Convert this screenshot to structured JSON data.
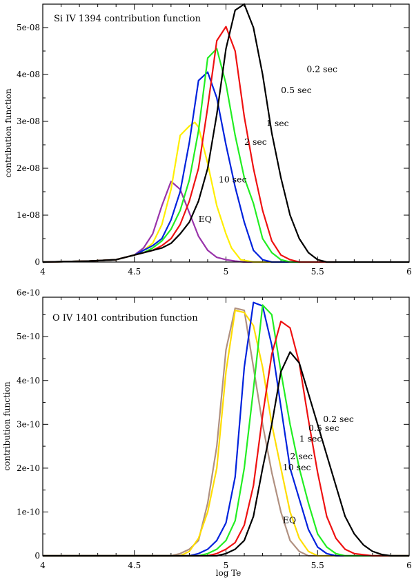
{
  "chart_data": [
    {
      "type": "line",
      "title": "Si IV 1394 contribution function",
      "xlabel": "",
      "ylabel": "contribution function",
      "xlim": [
        4,
        6
      ],
      "ylim": [
        0,
        5.5e-08
      ],
      "xticks": [
        4,
        4.5,
        5,
        5.5,
        6
      ],
      "xtick_labels": [
        "4",
        "4.5",
        "5",
        "5.5",
        "6"
      ],
      "yticks": [
        0,
        1e-08,
        2e-08,
        3e-08,
        4e-08,
        5e-08
      ],
      "ytick_labels": [
        "0",
        "1e-08",
        "2e-08",
        "3e-08",
        "4e-08",
        "5e-08"
      ],
      "series": [
        {
          "name": "EQ",
          "color": "#9933aa",
          "x": [
            4.0,
            4.25,
            4.4,
            4.5,
            4.55,
            4.6,
            4.65,
            4.7,
            4.75,
            4.8,
            4.85,
            4.9,
            4.95,
            5.0,
            5.05,
            5.1,
            5.2
          ],
          "y": [
            0,
            2e-10,
            5e-10,
            1.5e-09,
            3e-09,
            6e-09,
            1.2e-08,
            1.72e-08,
            1.55e-08,
            1.05e-08,
            5.5e-09,
            2.5e-09,
            1e-09,
            5e-10,
            2e-10,
            0,
            0
          ]
        },
        {
          "name": "10 sec",
          "color": "#ffee00",
          "x": [
            4.0,
            4.25,
            4.4,
            4.5,
            4.55,
            4.6,
            4.65,
            4.7,
            4.75,
            4.8,
            4.83,
            4.85,
            4.9,
            4.95,
            5.0,
            5.03,
            5.08,
            5.15,
            5.3
          ],
          "y": [
            0,
            2e-10,
            5e-10,
            1.5e-09,
            2.5e-09,
            4e-09,
            8e-09,
            1.55e-08,
            2.7e-08,
            2.9e-08,
            2.98e-08,
            2.88e-08,
            2.1e-08,
            1.2e-08,
            6e-09,
            3e-09,
            5e-10,
            0,
            0
          ]
        },
        {
          "name": "2 sec",
          "color": "#0022dd",
          "x": [
            4.0,
            4.25,
            4.4,
            4.5,
            4.55,
            4.6,
            4.65,
            4.7,
            4.75,
            4.8,
            4.85,
            4.9,
            4.95,
            5.0,
            5.05,
            5.1,
            5.15,
            5.2,
            5.25,
            5.3,
            5.4
          ],
          "y": [
            0,
            2e-10,
            5e-10,
            1.5e-09,
            2.5e-09,
            3.5e-09,
            5e-09,
            9e-09,
            1.5e-08,
            2.55e-08,
            3.87e-08,
            4.05e-08,
            3.5e-08,
            2.5e-08,
            1.6e-08,
            8.5e-09,
            2.5e-09,
            5e-10,
            0,
            0,
            0
          ]
        },
        {
          "name": "1 sec",
          "color": "#22ee22",
          "x": [
            4.0,
            4.25,
            4.4,
            4.5,
            4.55,
            4.6,
            4.65,
            4.7,
            4.75,
            4.8,
            4.85,
            4.9,
            4.95,
            5.0,
            5.05,
            5.1,
            5.15,
            5.2,
            5.25,
            5.3,
            5.35,
            5.4,
            5.5
          ],
          "y": [
            0,
            2e-10,
            5e-10,
            1.5e-09,
            2e-09,
            3e-09,
            4.5e-09,
            7e-09,
            1.1e-08,
            1.75e-08,
            2.8e-08,
            4.35e-08,
            4.55e-08,
            3.8e-08,
            2.7e-08,
            1.8e-08,
            1.25e-08,
            5e-09,
            2e-09,
            5e-10,
            0,
            0,
            0
          ]
        },
        {
          "name": "0.5 sec",
          "color": "#ee1111",
          "x": [
            4.0,
            4.25,
            4.4,
            4.5,
            4.55,
            4.6,
            4.65,
            4.7,
            4.75,
            4.8,
            4.85,
            4.9,
            4.95,
            5.0,
            5.05,
            5.1,
            5.15,
            5.2,
            5.25,
            5.3,
            5.35,
            5.4,
            5.45,
            5.5,
            5.6
          ],
          "y": [
            0,
            2e-10,
            5e-10,
            1.5e-09,
            2e-09,
            2.5e-09,
            3.5e-09,
            5e-09,
            8e-09,
            1.3e-08,
            2e-08,
            3.3e-08,
            4.72e-08,
            5.02e-08,
            4.5e-08,
            3.1e-08,
            2e-08,
            1.1e-08,
            4.5e-09,
            1.5e-09,
            5e-10,
            0,
            0,
            0,
            0
          ]
        },
        {
          "name": "0.2 sec",
          "color": "#000000",
          "x": [
            4.0,
            4.25,
            4.4,
            4.5,
            4.55,
            4.6,
            4.65,
            4.7,
            4.75,
            4.8,
            4.85,
            4.9,
            4.95,
            5.0,
            5.05,
            5.1,
            5.15,
            5.2,
            5.25,
            5.3,
            5.35,
            5.4,
            5.45,
            5.5,
            5.55,
            5.6,
            5.65,
            5.7,
            5.8,
            6.0
          ],
          "y": [
            0,
            2e-10,
            5e-10,
            1.5e-09,
            2e-09,
            2.5e-09,
            3e-09,
            4e-09,
            6e-09,
            8.5e-09,
            1.3e-08,
            2e-08,
            3.15e-08,
            4.55e-08,
            5.37e-08,
            5.5e-08,
            5e-08,
            4e-08,
            2.75e-08,
            1.8e-08,
            1e-08,
            5e-09,
            2e-09,
            5e-10,
            0,
            0,
            0,
            0,
            0,
            0
          ]
        }
      ],
      "annotations": [
        {
          "text": "0.2 sec",
          "x": 5.44,
          "y": 4.05e-08
        },
        {
          "text": "0.5 sec",
          "x": 5.3,
          "y": 3.6e-08
        },
        {
          "text": "1 sec",
          "x": 5.22,
          "y": 2.9e-08
        },
        {
          "text": "2 sec",
          "x": 5.1,
          "y": 2.5e-08
        },
        {
          "text": "10 sec",
          "x": 4.96,
          "y": 1.7e-08
        },
        {
          "text": "EQ",
          "x": 4.85,
          "y": 8.5e-09
        }
      ]
    },
    {
      "type": "line",
      "title": "O IV 1401 contribution function",
      "xlabel": "log Te",
      "ylabel": "contribution function",
      "xlim": [
        4,
        6
      ],
      "ylim": [
        0,
        5.9e-10
      ],
      "xticks": [
        4,
        4.5,
        5,
        5.5,
        6
      ],
      "xtick_labels": [
        "4",
        "4.5",
        "5",
        "5.5",
        "6"
      ],
      "yticks": [
        0,
        1e-10,
        2e-10,
        3e-10,
        4e-10,
        5e-10,
        6e-10
      ],
      "ytick_labels": [
        "0",
        "1e-10",
        "2e-10",
        "3e-10",
        "4e-10",
        "5e-10",
        "6e-10"
      ],
      "series": [
        {
          "name": "EQ",
          "color": "#b09080",
          "x": [
            4.0,
            4.7,
            4.75,
            4.8,
            4.85,
            4.9,
            4.95,
            5.0,
            5.05,
            5.1,
            5.15,
            5.2,
            5.25,
            5.3,
            5.35,
            5.4,
            5.45,
            5.5,
            6.0
          ],
          "y": [
            0,
            0,
            5e-12,
            1.5e-11,
            3.5e-11,
            1.2e-10,
            2.5e-10,
            4.7e-10,
            5.65e-10,
            5.6e-10,
            4.3e-10,
            3e-10,
            1.9e-10,
            1e-10,
            3.5e-11,
            1e-11,
            0,
            0,
            0
          ]
        },
        {
          "name": "10 sec",
          "color": "#ffdd00",
          "x": [
            4.0,
            4.75,
            4.8,
            4.85,
            4.9,
            4.95,
            5.0,
            5.05,
            5.1,
            5.15,
            5.2,
            5.25,
            5.3,
            5.35,
            5.4,
            5.45,
            5.5,
            6.0
          ],
          "y": [
            0,
            0,
            1e-11,
            4e-11,
            1e-10,
            2e-10,
            4.2e-10,
            5.6e-10,
            5.55e-10,
            5.25e-10,
            4.3e-10,
            3e-10,
            2e-10,
            1e-10,
            4e-11,
            1e-11,
            0,
            0
          ]
        },
        {
          "name": "2 sec",
          "color": "#0022dd",
          "x": [
            4.0,
            4.8,
            4.85,
            4.9,
            4.95,
            5.0,
            5.05,
            5.1,
            5.15,
            5.2,
            5.25,
            5.3,
            5.35,
            5.4,
            5.45,
            5.5,
            5.55,
            5.6,
            6.0
          ],
          "y": [
            0,
            0,
            5e-12,
            1.5e-11,
            3.5e-11,
            7.5e-11,
            1.8e-10,
            4.3e-10,
            5.78e-10,
            5.7e-10,
            4.8e-10,
            3.4e-10,
            2e-10,
            1.3e-10,
            6e-11,
            2e-11,
            5e-12,
            0,
            0
          ]
        },
        {
          "name": "1 sec",
          "color": "#22ee22",
          "x": [
            4.0,
            4.85,
            4.9,
            4.95,
            5.0,
            5.05,
            5.1,
            5.15,
            5.2,
            5.25,
            5.3,
            5.35,
            5.4,
            5.45,
            5.5,
            5.55,
            5.6,
            5.65,
            6.0
          ],
          "y": [
            0,
            0,
            5e-12,
            1.5e-11,
            3.5e-11,
            8e-11,
            2e-10,
            3.8e-10,
            5.72e-10,
            5.5e-10,
            4.2e-10,
            3e-10,
            2e-10,
            1.2e-10,
            5e-11,
            2e-11,
            5e-12,
            0,
            0
          ]
        },
        {
          "name": "0.5 sec",
          "color": "#ee1111",
          "x": [
            4.0,
            4.9,
            4.95,
            5.0,
            5.05,
            5.1,
            5.15,
            5.2,
            5.25,
            5.3,
            5.35,
            5.4,
            5.45,
            5.5,
            5.55,
            5.6,
            5.65,
            5.7,
            5.8,
            6.0
          ],
          "y": [
            0,
            0,
            5e-12,
            1.5e-11,
            3e-11,
            7e-11,
            1.6e-10,
            3.2e-10,
            4.6e-10,
            5.35e-10,
            5.2e-10,
            4.4e-10,
            3.1e-10,
            1.9e-10,
            9e-11,
            4e-11,
            1.5e-11,
            5e-12,
            0,
            0
          ]
        },
        {
          "name": "0.2 sec",
          "color": "#000000",
          "x": [
            4.0,
            4.95,
            5.0,
            5.05,
            5.1,
            5.15,
            5.2,
            5.25,
            5.3,
            5.35,
            5.4,
            5.45,
            5.5,
            5.55,
            5.6,
            5.65,
            5.7,
            5.75,
            5.8,
            5.85,
            5.9,
            5.95,
            6.0
          ],
          "y": [
            0,
            0,
            5e-12,
            1.5e-11,
            3.5e-11,
            9e-11,
            2e-10,
            3e-10,
            4.2e-10,
            4.65e-10,
            4.4e-10,
            3.7e-10,
            3e-10,
            2.3e-10,
            1.6e-10,
            9e-11,
            5e-11,
            2.5e-11,
            1e-11,
            3e-12,
            0,
            0,
            0
          ]
        }
      ],
      "annotations": [
        {
          "text": "0.2 sec",
          "x": 5.53,
          "y": 3.05e-10
        },
        {
          "text": "0.5 sec",
          "x": 5.45,
          "y": 2.85e-10
        },
        {
          "text": "1 sec",
          "x": 5.4,
          "y": 2.6e-10
        },
        {
          "text": "2 sec",
          "x": 5.35,
          "y": 2.2e-10
        },
        {
          "text": "10 sec",
          "x": 5.31,
          "y": 1.95e-10
        },
        {
          "text": "EQ",
          "x": 5.31,
          "y": 7.5e-11
        }
      ]
    }
  ]
}
